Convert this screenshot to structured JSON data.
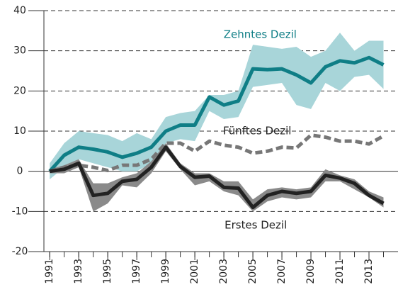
{
  "chart_data": {
    "type": "line",
    "x": [
      1991,
      1992,
      1993,
      1994,
      1995,
      1996,
      1997,
      1998,
      1999,
      2000,
      2001,
      2002,
      2003,
      2004,
      2005,
      2006,
      2007,
      2008,
      2009,
      2010,
      2011,
      2012,
      2013,
      2014
    ],
    "xticks": [
      1991,
      1993,
      1995,
      1997,
      1999,
      2001,
      2003,
      2005,
      2007,
      2009,
      2011,
      2013
    ],
    "xlim": [
      1990.6,
      2015
    ],
    "ylim": [
      -20,
      40
    ],
    "yticks": [
      -20,
      -10,
      0,
      10,
      20,
      30,
      40
    ],
    "grid": true,
    "series": [
      {
        "name": "Zehntes Dezil",
        "color": "#0f7e86",
        "band_color": "#a8d5d9",
        "dashed": false,
        "values": [
          0,
          4,
          6,
          5.5,
          4.8,
          3.5,
          4.5,
          6,
          10,
          11.5,
          11.5,
          18.5,
          16.5,
          17.5,
          25.5,
          25.3,
          25.5,
          24,
          22,
          26,
          27.5,
          27,
          28.3,
          26.5
        ],
        "upper": [
          2,
          7,
          10,
          9.5,
          9,
          7.5,
          9.5,
          8,
          13.5,
          14.5,
          15,
          19,
          19,
          20,
          31.5,
          31,
          30.5,
          31,
          28.5,
          30,
          34.5,
          30,
          32.5,
          32.5
        ],
        "lower": [
          -2,
          1,
          3,
          2,
          1,
          0,
          0,
          2,
          7,
          8,
          7.5,
          15,
          13,
          13.5,
          21,
          21.5,
          22,
          16.5,
          15.5,
          22,
          20,
          23.5,
          24,
          20.5
        ]
      },
      {
        "name": "Fünftes Dezil",
        "color": "#777777",
        "dashed": true,
        "values": [
          0,
          1,
          1.5,
          1,
          0.2,
          1.5,
          1.5,
          3,
          7,
          7,
          5,
          7.5,
          6.5,
          6,
          4.5,
          5,
          6,
          5.8,
          9,
          8.5,
          7.5,
          7.5,
          6.8,
          8.8
        ]
      },
      {
        "name": "Erstes Dezil",
        "color": "#222222",
        "band_color": "#8a8a8a",
        "dashed": false,
        "values": [
          0,
          0.5,
          2,
          -6,
          -5.5,
          -2.5,
          -2,
          1,
          6,
          1.2,
          -1.5,
          -1.2,
          -4,
          -4.2,
          -9,
          -6,
          -5,
          -5.5,
          -5,
          -1,
          -1.7,
          -3,
          -6,
          -8
        ],
        "upper": [
          0.5,
          1.5,
          3,
          -3,
          -3,
          -1.5,
          -0.5,
          2.5,
          7,
          2,
          -0.5,
          -0.5,
          -2.5,
          -2.5,
          -7,
          -4.5,
          -4,
          -4.5,
          -4,
          0.5,
          -1,
          -2,
          -5,
          -6.5
        ],
        "lower": [
          -0.5,
          -0.5,
          1,
          -10,
          -8,
          -3.5,
          -4,
          -0.5,
          5,
          0.5,
          -3.5,
          -2.5,
          -5,
          -6,
          -10,
          -7.5,
          -6.5,
          -7,
          -6.5,
          -2.5,
          -2.5,
          -4.5,
          -6.5,
          -9
        ]
      }
    ],
    "annotations": [
      {
        "text": "Zehntes Dezil",
        "x": 2005.5,
        "y": 34
      },
      {
        "text": "Fünftes Dezil",
        "x": 2005.3,
        "y": 10
      },
      {
        "text": "Erstes Dezil",
        "x": 2005.2,
        "y": -13.5
      }
    ]
  }
}
